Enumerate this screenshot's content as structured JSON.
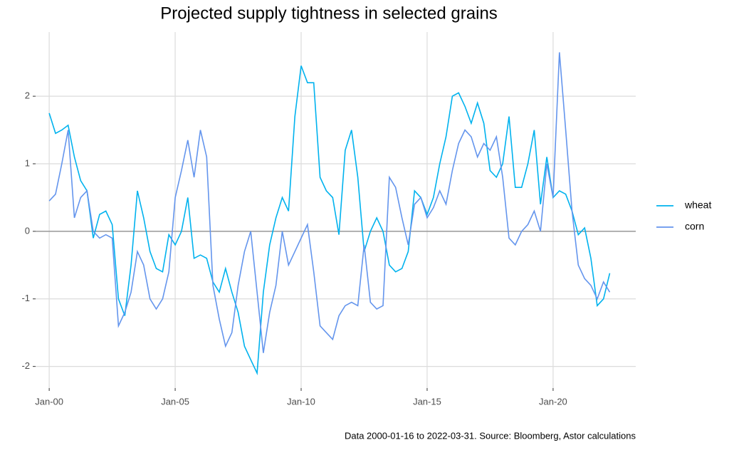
{
  "chart_data": {
    "type": "line",
    "title": "Projected supply tightness in selected grains",
    "caption": "Data 2000-01-16 to 2022-03-31.  Source: Bloomberg, Astor calculations",
    "x": [
      2000,
      2000.25,
      2000.5,
      2000.75,
      2001,
      2001.25,
      2001.5,
      2001.75,
      2002,
      2002.25,
      2002.5,
      2002.75,
      2003,
      2003.25,
      2003.5,
      2003.75,
      2004,
      2004.25,
      2004.5,
      2004.75,
      2005,
      2005.25,
      2005.5,
      2005.75,
      2006,
      2006.25,
      2006.5,
      2006.75,
      2007,
      2007.25,
      2007.5,
      2007.75,
      2008,
      2008.25,
      2008.5,
      2008.75,
      2009,
      2009.25,
      2009.5,
      2009.75,
      2010,
      2010.25,
      2010.5,
      2010.75,
      2011,
      2011.25,
      2011.5,
      2011.75,
      2012,
      2012.25,
      2012.5,
      2012.75,
      2013,
      2013.25,
      2013.5,
      2013.75,
      2014,
      2014.25,
      2014.5,
      2014.75,
      2015,
      2015.25,
      2015.5,
      2015.75,
      2016,
      2016.25,
      2016.5,
      2016.75,
      2017,
      2017.25,
      2017.5,
      2017.75,
      2018,
      2018.25,
      2018.5,
      2018.75,
      2019,
      2019.25,
      2019.5,
      2019.75,
      2020,
      2020.25,
      2020.5,
      2020.75,
      2021,
      2021.25,
      2021.5,
      2021.75,
      2022,
      2022.25
    ],
    "series": [
      {
        "name": "wheat",
        "color": "#00b2ee",
        "values": [
          1.75,
          1.45,
          1.5,
          1.57,
          1.1,
          0.75,
          0.6,
          -0.1,
          0.25,
          0.3,
          0.1,
          -1.0,
          -1.25,
          -0.5,
          0.6,
          0.2,
          -0.3,
          -0.55,
          -0.6,
          -0.05,
          -0.2,
          0.0,
          0.5,
          -0.4,
          -0.35,
          -0.4,
          -0.75,
          -0.9,
          -0.55,
          -0.9,
          -1.2,
          -1.7,
          -1.9,
          -2.1,
          -0.9,
          -0.2,
          0.2,
          0.5,
          0.3,
          1.7,
          2.45,
          2.2,
          2.2,
          0.8,
          0.6,
          0.5,
          -0.05,
          1.2,
          1.5,
          0.8,
          -0.3,
          0.0,
          0.2,
          0.0,
          -0.5,
          -0.6,
          -0.55,
          -0.3,
          0.6,
          0.5,
          0.25,
          0.5,
          1.0,
          1.4,
          2.0,
          2.05,
          1.85,
          1.6,
          1.9,
          1.6,
          0.9,
          0.8,
          1.0,
          1.7,
          0.65,
          0.65,
          1.0,
          1.5,
          0.4,
          1.1,
          0.5,
          0.6,
          0.55,
          0.3,
          -0.05,
          0.05,
          -0.4,
          -1.1,
          -1.0,
          -0.62
        ]
      },
      {
        "name": "corn",
        "color": "#6495ed",
        "values": [
          0.45,
          0.55,
          1.0,
          1.5,
          0.2,
          0.5,
          0.6,
          0.0,
          -0.1,
          -0.05,
          -0.1,
          -1.4,
          -1.2,
          -0.9,
          -0.3,
          -0.5,
          -1.0,
          -1.15,
          -1.0,
          -0.6,
          0.5,
          0.9,
          1.35,
          0.8,
          1.5,
          1.1,
          -0.8,
          -1.3,
          -1.7,
          -1.5,
          -0.8,
          -0.3,
          0.0,
          -0.9,
          -1.8,
          -1.2,
          -0.8,
          0.0,
          -0.5,
          -0.3,
          -0.1,
          0.1,
          -0.6,
          -1.4,
          -1.5,
          -1.6,
          -1.25,
          -1.1,
          -1.05,
          -1.1,
          -0.2,
          -1.05,
          -1.15,
          -1.1,
          0.8,
          0.65,
          0.2,
          -0.2,
          0.4,
          0.5,
          0.2,
          0.35,
          0.6,
          0.4,
          0.9,
          1.3,
          1.5,
          1.4,
          1.1,
          1.3,
          1.2,
          1.4,
          0.8,
          -0.1,
          -0.2,
          0.0,
          0.1,
          0.3,
          0.0,
          1.0,
          0.5,
          2.65,
          1.5,
          0.3,
          -0.5,
          -0.7,
          -0.8,
          -1.0,
          -0.75,
          -0.9
        ]
      }
    ],
    "xlim": [
      1999.46,
      2023.28
    ],
    "xticks": [
      {
        "value": 2000,
        "label": "Jan-00"
      },
      {
        "value": 2005,
        "label": "Jan-05"
      },
      {
        "value": 2010,
        "label": "Jan-10"
      },
      {
        "value": 2015,
        "label": "Jan-15"
      },
      {
        "value": 2020,
        "label": "Jan-20"
      }
    ],
    "ylim": [
      -2.32,
      2.95
    ],
    "yticks": [
      -2,
      -1,
      0,
      1,
      2
    ],
    "hline": 0,
    "grid": true,
    "legend": "right"
  }
}
